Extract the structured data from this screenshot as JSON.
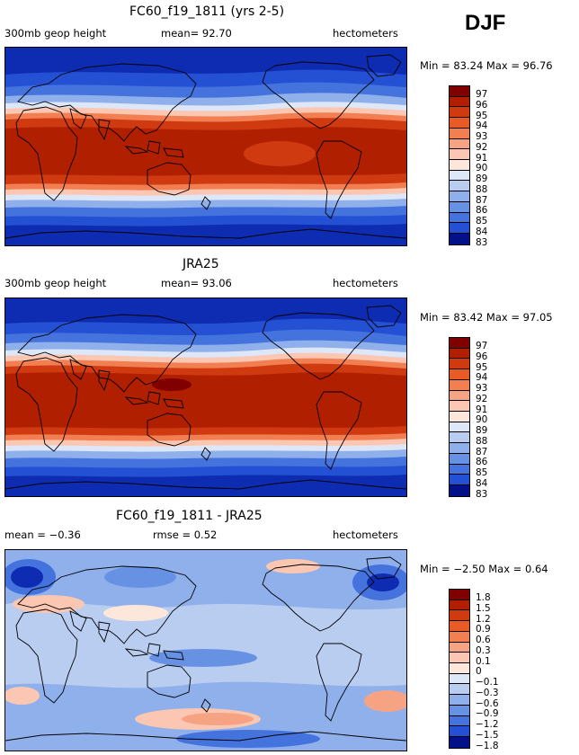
{
  "season": "DJF",
  "colors": {
    "warm": [
      "#800000",
      "#b02000",
      "#d03a10",
      "#e85a26",
      "#f27f52",
      "#f6a383",
      "#fbc7b2",
      "#fde6da"
    ],
    "cool": [
      "#dde7f7",
      "#b8cdf0",
      "#8fb0ea",
      "#6792e4",
      "#4473de",
      "#2451d4",
      "#0d2cb2",
      "#02108a"
    ]
  },
  "panels": [
    {
      "title": "FC60_f19_1811 (yrs 2-5)",
      "left_label": "300mb geop height",
      "mid_label": "mean=  92.70",
      "right_label": "hectometers",
      "minmax": "Min =  83.24 Max =  96.76",
      "levels": [
        "97",
        "96",
        "95",
        "94",
        "93",
        "92",
        "91",
        "90",
        "89",
        "88",
        "87",
        "86",
        "85",
        "84",
        "83"
      ],
      "variable": "300mb geopotential height"
    },
    {
      "title": "JRA25",
      "left_label": "300mb geop height",
      "mid_label": "mean=  93.06",
      "right_label": "hectometers",
      "minmax": "Min =  83.42 Max =  97.05",
      "levels": [
        "97",
        "96",
        "95",
        "94",
        "93",
        "92",
        "91",
        "90",
        "89",
        "88",
        "87",
        "86",
        "85",
        "84",
        "83"
      ],
      "variable": "300mb geopotential height"
    },
    {
      "title": "FC60_f19_1811 - JRA25",
      "left_label": "mean =  −0.36",
      "mid_label": "rmse =  0.52",
      "right_label": "hectometers",
      "minmax": "Min =  −2.50 Max =  0.64",
      "levels": [
        "1.8",
        "1.5",
        "1.2",
        "0.9",
        "0.6",
        "0.3",
        "0.1",
        "0",
        "−0.1",
        "−0.3",
        "−0.6",
        "−0.9",
        "−1.2",
        "−1.5",
        "−1.8"
      ],
      "variable": "difference"
    }
  ]
}
